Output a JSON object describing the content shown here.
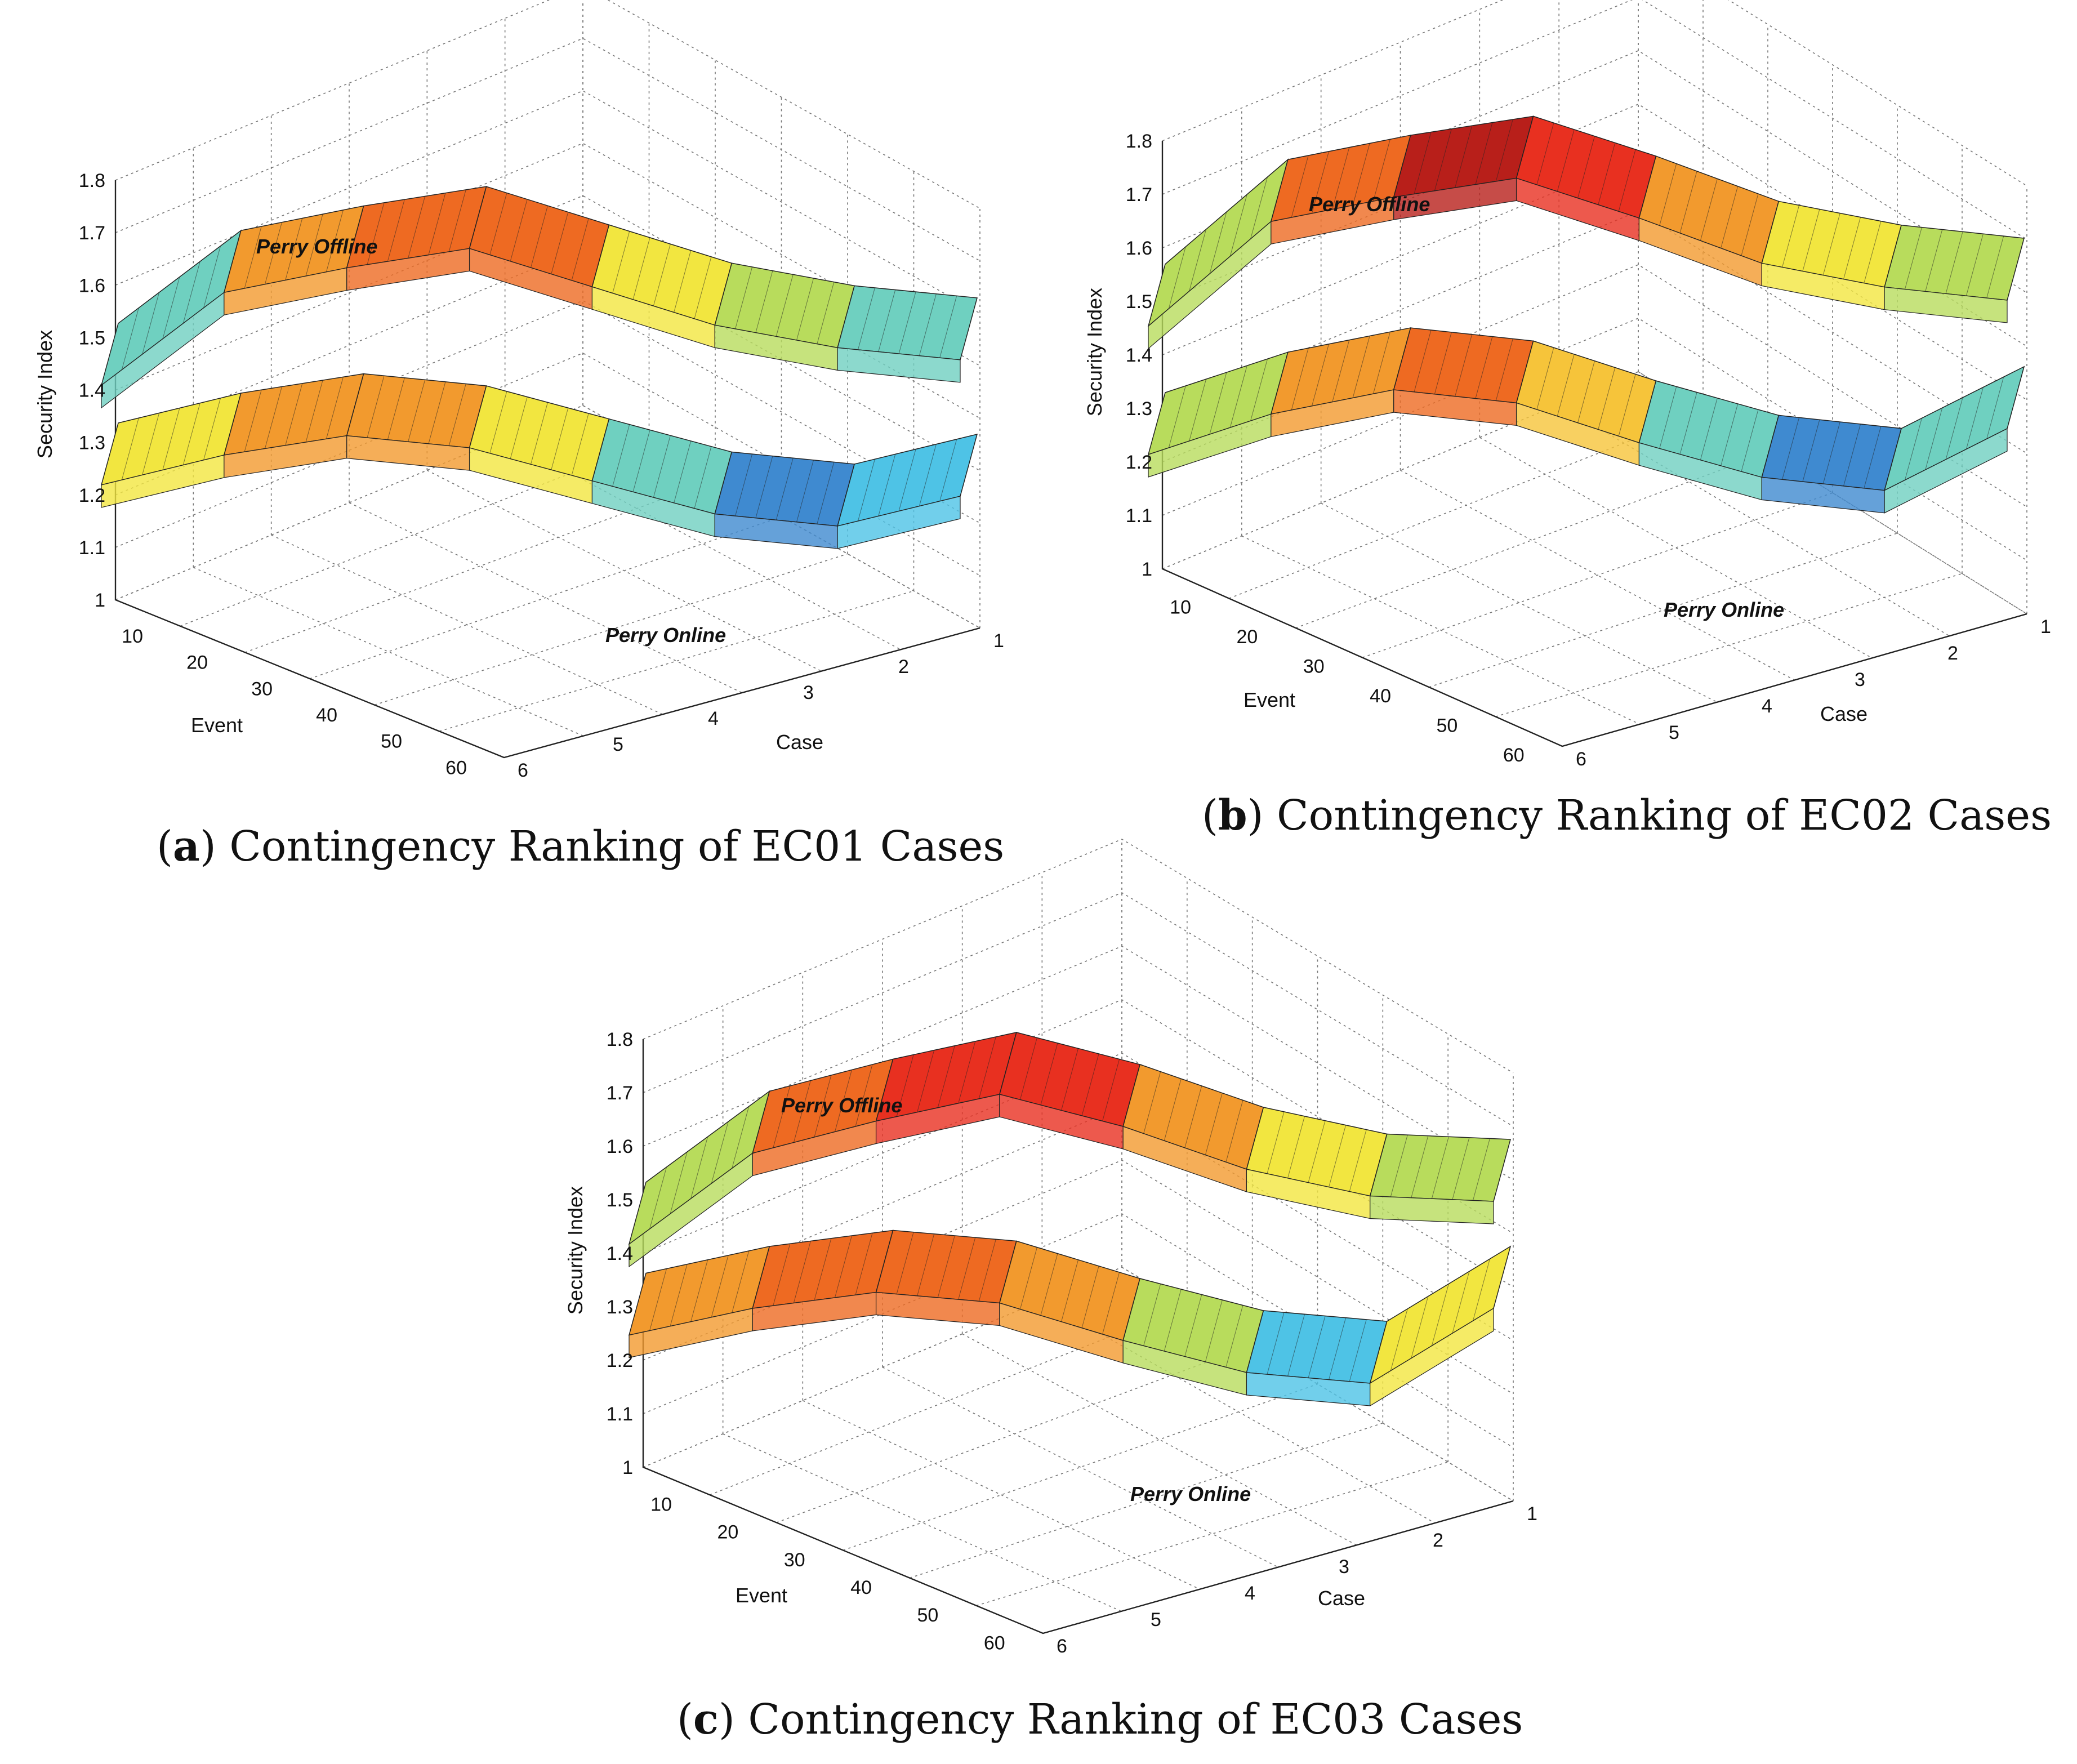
{
  "chart_data": [
    {
      "type": "surface3d",
      "panel_label": "a",
      "caption": "Contingency Ranking of EC01 Cases",
      "zlabel": "Security Index",
      "xlabel": "Event",
      "ylabel": "Case",
      "zlim": [
        1,
        1.8
      ],
      "z_ticks": [
        "1",
        "1.1",
        "1.2",
        "1.3",
        "1.4",
        "1.5",
        "1.6",
        "1.7",
        "1.8"
      ],
      "event_ticks": [
        "10",
        "20",
        "30",
        "40",
        "50",
        "60"
      ],
      "case_ticks": [
        "1",
        "2",
        "3",
        "4",
        "5",
        "6"
      ],
      "annotations": {
        "offline": "Perry Offline",
        "online": "Perry Online"
      },
      "series": [
        {
          "name": "Perry Offline",
          "values": [
            1.35,
            1.53,
            1.58,
            1.62,
            1.55,
            1.48,
            1.44,
            1.42
          ]
        },
        {
          "name": "Perry Online",
          "values": [
            1.16,
            1.22,
            1.26,
            1.24,
            1.18,
            1.12,
            1.1,
            1.16
          ]
        }
      ]
    },
    {
      "type": "surface3d",
      "panel_label": "b",
      "caption": "Contingency Ranking of EC02 Cases",
      "zlabel": "Security Index",
      "xlabel": "Event",
      "ylabel": "Case",
      "zlim": [
        1,
        1.8
      ],
      "z_ticks": [
        "1",
        "1.1",
        "1.2",
        "1.3",
        "1.4",
        "1.5",
        "1.6",
        "1.7",
        "1.8"
      ],
      "event_ticks": [
        "10",
        "20",
        "30",
        "40",
        "50",
        "60"
      ],
      "case_ticks": [
        "1",
        "2",
        "3",
        "4",
        "5",
        "6"
      ],
      "annotations": {
        "offline": "Perry Offline",
        "online": "Perry Online"
      },
      "series": [
        {
          "name": "Perry Offline",
          "values": [
            1.38,
            1.58,
            1.63,
            1.67,
            1.6,
            1.52,
            1.48,
            1.46
          ]
        },
        {
          "name": "Perry Online",
          "values": [
            1.14,
            1.22,
            1.27,
            1.25,
            1.18,
            1.12,
            1.1,
            1.22
          ]
        }
      ]
    },
    {
      "type": "surface3d",
      "panel_label": "c",
      "caption": "Contingency Ranking of EC03 Cases",
      "zlabel": "Security Index",
      "xlabel": "Event",
      "ylabel": "Case",
      "zlim": [
        1,
        1.8
      ],
      "z_ticks": [
        "1",
        "1.1",
        "1.2",
        "1.3",
        "1.4",
        "1.5",
        "1.6",
        "1.7",
        "1.8"
      ],
      "event_ticks": [
        "10",
        "20",
        "30",
        "40",
        "50",
        "60"
      ],
      "case_ticks": [
        "1",
        "2",
        "3",
        "4",
        "5",
        "6"
      ],
      "annotations": {
        "offline": "Perry Offline",
        "online": "Perry Online"
      },
      "series": [
        {
          "name": "Perry Offline",
          "values": [
            1.38,
            1.55,
            1.61,
            1.66,
            1.6,
            1.52,
            1.47,
            1.46
          ]
        },
        {
          "name": "Perry Online",
          "values": [
            1.21,
            1.26,
            1.29,
            1.27,
            1.2,
            1.14,
            1.12,
            1.26
          ]
        }
      ]
    }
  ]
}
